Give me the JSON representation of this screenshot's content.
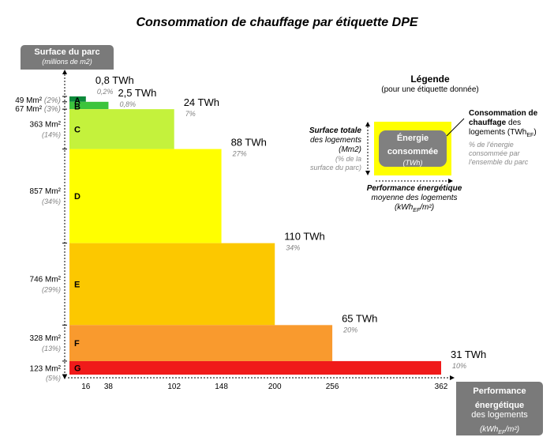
{
  "chart_data": {
    "type": "bar",
    "title": "Consommation de chauffage par étiquette DPE",
    "y_axis": {
      "label": "Surface du parc",
      "unit": "(millions de m2)"
    },
    "x_axis": {
      "label_line1": "Performance",
      "label_line2": "énergétique",
      "label_line3": "des logements",
      "unit": "(kWh",
      "unit_sub": "EF",
      "unit_tail": "/m²)"
    },
    "x_ticks": [
      "16",
      "38",
      "102",
      "148",
      "200",
      "256",
      "362"
    ],
    "categories": [
      "A",
      "B",
      "C",
      "D",
      "E",
      "F",
      "G"
    ],
    "performance_kwh_m2": [
      16,
      38,
      102,
      148,
      200,
      256,
      362
    ],
    "surface_mm2": [
      49,
      67,
      363,
      857,
      746,
      328,
      123
    ],
    "surface_labels": [
      "49 Mm²",
      "67 Mm²",
      "363 Mm²",
      "857 Mm²",
      "746 Mm²",
      "328 Mm²",
      "123 Mm²"
    ],
    "surface_pct": [
      "(2%)",
      "(3%)",
      "(14%)",
      "(34%)",
      "(29%)",
      "(13%)",
      "(5%)"
    ],
    "consumption_twh": [
      0.8,
      2.5,
      24,
      88,
      110,
      65,
      31
    ],
    "consumption_labels": [
      "0,8 TWh",
      "2,5 TWh",
      "24 TWh",
      "88 TWh",
      "110 TWh",
      "65 TWh",
      "31 TWh"
    ],
    "consumption_pct": [
      "0,2%",
      "0,8%",
      "7%",
      "27%",
      "34%",
      "20%",
      "10%"
    ],
    "colors": [
      "#0c8a3a",
      "#3cc43c",
      "#c4f23c",
      "#ffff00",
      "#fcc800",
      "#f99a2e",
      "#f01a1a"
    ]
  },
  "legend": {
    "title": "Légende",
    "subtitle": "(pour une étiquette donnée)",
    "left_bold_1": "Surface totale",
    "left_normal_1": "des logements",
    "left_normal_2": "(Mm2)",
    "left_gray_1": "(% de la",
    "left_gray_2": "surface du parc)",
    "right_bold_1": "Consommation de",
    "right_bold_2": "chauffage",
    "right_normal_1": " des",
    "right_normal_2": "logements (TWh",
    "right_sub": "EF",
    "right_tail": ")",
    "right_gray_1": "% de l'énergie",
    "right_gray_2": "consommée par",
    "right_gray_3": "l'ensemble du parc",
    "bottom_bold": "Performance énergétique",
    "bottom_normal": "moyenne des logements",
    "bottom_unit": "(kWh",
    "bottom_sub": "EF",
    "bottom_tail": "/m²)",
    "inner_line1": "Énergie",
    "inner_line2": "consommée",
    "inner_line3": "(TWh)",
    "box_color": "#ffff00",
    "inner_color": "#808080"
  }
}
